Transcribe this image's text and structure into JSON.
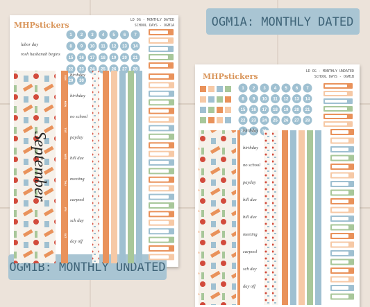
{
  "labels": {
    "dated": "OGM1A: MONTHLY DATED",
    "undated": "OGM1B: MONTHLY UNDATED"
  },
  "sheet_dated": {
    "brand": "MHPstickers",
    "title": "LD OG - MONTHLY DATED",
    "subtitle": "SCHOOL DAYS - OGM1A",
    "holidays": [
      "labor day",
      "rosh hashanah begins"
    ],
    "month": "September",
    "days": [
      1,
      2,
      3,
      4,
      5,
      6,
      7,
      8,
      9,
      10,
      11,
      12,
      13,
      14,
      15,
      16,
      17,
      18,
      19,
      20,
      21,
      22,
      23,
      24,
      25,
      26,
      27,
      28,
      29,
      30
    ],
    "weekdays": [
      "SUN",
      "MON",
      "TUE",
      "WED",
      "THU",
      "FRI",
      "SAT"
    ],
    "word_stickers": [
      "birthday",
      "birthday",
      "no school",
      "payday",
      "bill due",
      "meeting",
      "carpool",
      "sch day",
      "day off"
    ]
  },
  "sheet_undated": {
    "brand": "MHPstickers",
    "title": "LD OG - MONTHLY UNDATED",
    "subtitle": "SCHOOL DAYS - OGM1B",
    "days": [
      1,
      2,
      3,
      4,
      5,
      6,
      7,
      8,
      9,
      10,
      11,
      12,
      13,
      14,
      15,
      16,
      17,
      18,
      19,
      20,
      21,
      22,
      23,
      24,
      25,
      26,
      27,
      28,
      29,
      30,
      31
    ],
    "word_stickers": [
      "birthday",
      "birthday",
      "no school",
      "payday",
      "bill due",
      "bill due",
      "meeting",
      "carpool",
      "sch day",
      "day off"
    ]
  }
}
